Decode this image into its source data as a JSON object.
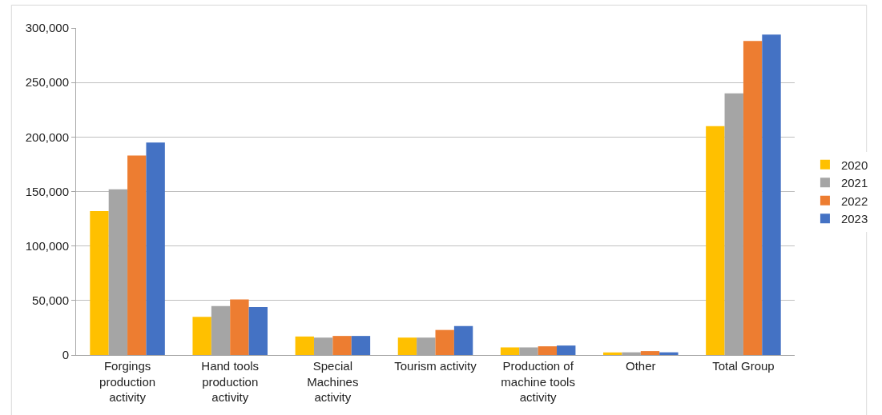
{
  "chart_data": {
    "type": "bar",
    "categories": [
      "Forgings\nproduction\nactivity",
      "Hand tools\nproduction\nactivity",
      "Special\nMachines\nactivity",
      "Tourism activity",
      "Production of\nmachine tools\nactivity",
      "Other",
      "Total Group"
    ],
    "series": [
      {
        "name": "2020",
        "color": "#ffc000",
        "values": [
          132000,
          35000,
          17000,
          16000,
          7000,
          2400,
          210000
        ]
      },
      {
        "name": "2021",
        "color": "#a5a5a5",
        "values": [
          152000,
          45000,
          16000,
          16000,
          7000,
          2500,
          240000
        ]
      },
      {
        "name": "2022",
        "color": "#ed7d31",
        "values": [
          183000,
          51000,
          17500,
          23000,
          8000,
          3600,
          288000
        ]
      },
      {
        "name": "2023",
        "color": "#4472c4",
        "values": [
          195000,
          44000,
          17500,
          26500,
          8700,
          2500,
          294000
        ]
      }
    ],
    "ylim": [
      0,
      300000
    ],
    "yticks": [
      {
        "value": 0,
        "label": "0"
      },
      {
        "value": 50000,
        "label": "50,000"
      },
      {
        "value": 100000,
        "label": "100,000"
      },
      {
        "value": 150000,
        "label": "150,000"
      },
      {
        "value": 200000,
        "label": "200,000"
      },
      {
        "value": 250000,
        "label": "250,000"
      },
      {
        "value": 300000,
        "label": "300,000"
      }
    ],
    "grid": "y",
    "legend": "right"
  }
}
